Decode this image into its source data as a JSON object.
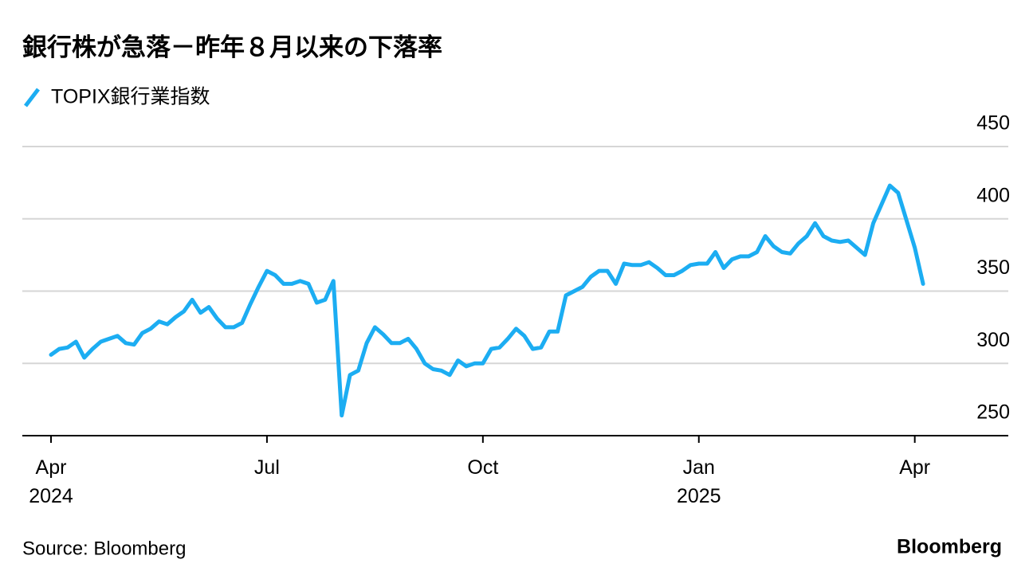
{
  "chart_data": {
    "type": "line",
    "title": "銀行株が急落－昨年８月以来の下落率",
    "source": "Source: Bloomberg",
    "brand": "Bloomberg",
    "categories": [
      "Apr 2024",
      null,
      null,
      null,
      null,
      null,
      null,
      null,
      null,
      null,
      null,
      null,
      null,
      null,
      null,
      null,
      null,
      null,
      null,
      null,
      null,
      null,
      null,
      null,
      null,
      null,
      "Jul",
      null,
      null,
      null,
      null,
      null,
      null,
      null,
      null,
      null,
      null,
      null,
      null,
      null,
      null,
      null,
      null,
      null,
      null,
      null,
      null,
      null,
      null,
      null,
      null,
      null,
      "Oct",
      null,
      null,
      null,
      null,
      null,
      null,
      null,
      null,
      null,
      null,
      null,
      null,
      null,
      null,
      null,
      null,
      null,
      null,
      null,
      null,
      null,
      null,
      null,
      null,
      null,
      "Jan 2025",
      null,
      null,
      null,
      null,
      null,
      null,
      null,
      null,
      null,
      null,
      null,
      null,
      null,
      null,
      null,
      null,
      null,
      null,
      null,
      null,
      null,
      null,
      null,
      null,
      null,
      "Apr",
      null
    ],
    "series": [
      {
        "name": "TOPIX銀行業指数",
        "color": "#1cadf2",
        "values": [
          306,
          310,
          311,
          315,
          304,
          310,
          315,
          317,
          319,
          314,
          313,
          321,
          324,
          329,
          327,
          332,
          336,
          344,
          335,
          339,
          331,
          325,
          325,
          328,
          341,
          353,
          364,
          361,
          355,
          355,
          357,
          355,
          342,
          344,
          357,
          264,
          292,
          295,
          314,
          325,
          320,
          314,
          314,
          317,
          310,
          300,
          296,
          295,
          292,
          302,
          298,
          300,
          300,
          310,
          311,
          317,
          324,
          319,
          310,
          311,
          322,
          322,
          347,
          350,
          353,
          360,
          364,
          364,
          355,
          369,
          368,
          368,
          370,
          366,
          361,
          361,
          364,
          368,
          369,
          369,
          377,
          366,
          372,
          374,
          374,
          377,
          388,
          381,
          377,
          376,
          383,
          388,
          397,
          388,
          385,
          384,
          385,
          380,
          375,
          397,
          410,
          423,
          418,
          399,
          380,
          355
        ]
      }
    ],
    "ylim": [
      250,
      450
    ],
    "yticks": [
      250,
      300,
      350,
      400,
      450
    ],
    "grid": true
  }
}
